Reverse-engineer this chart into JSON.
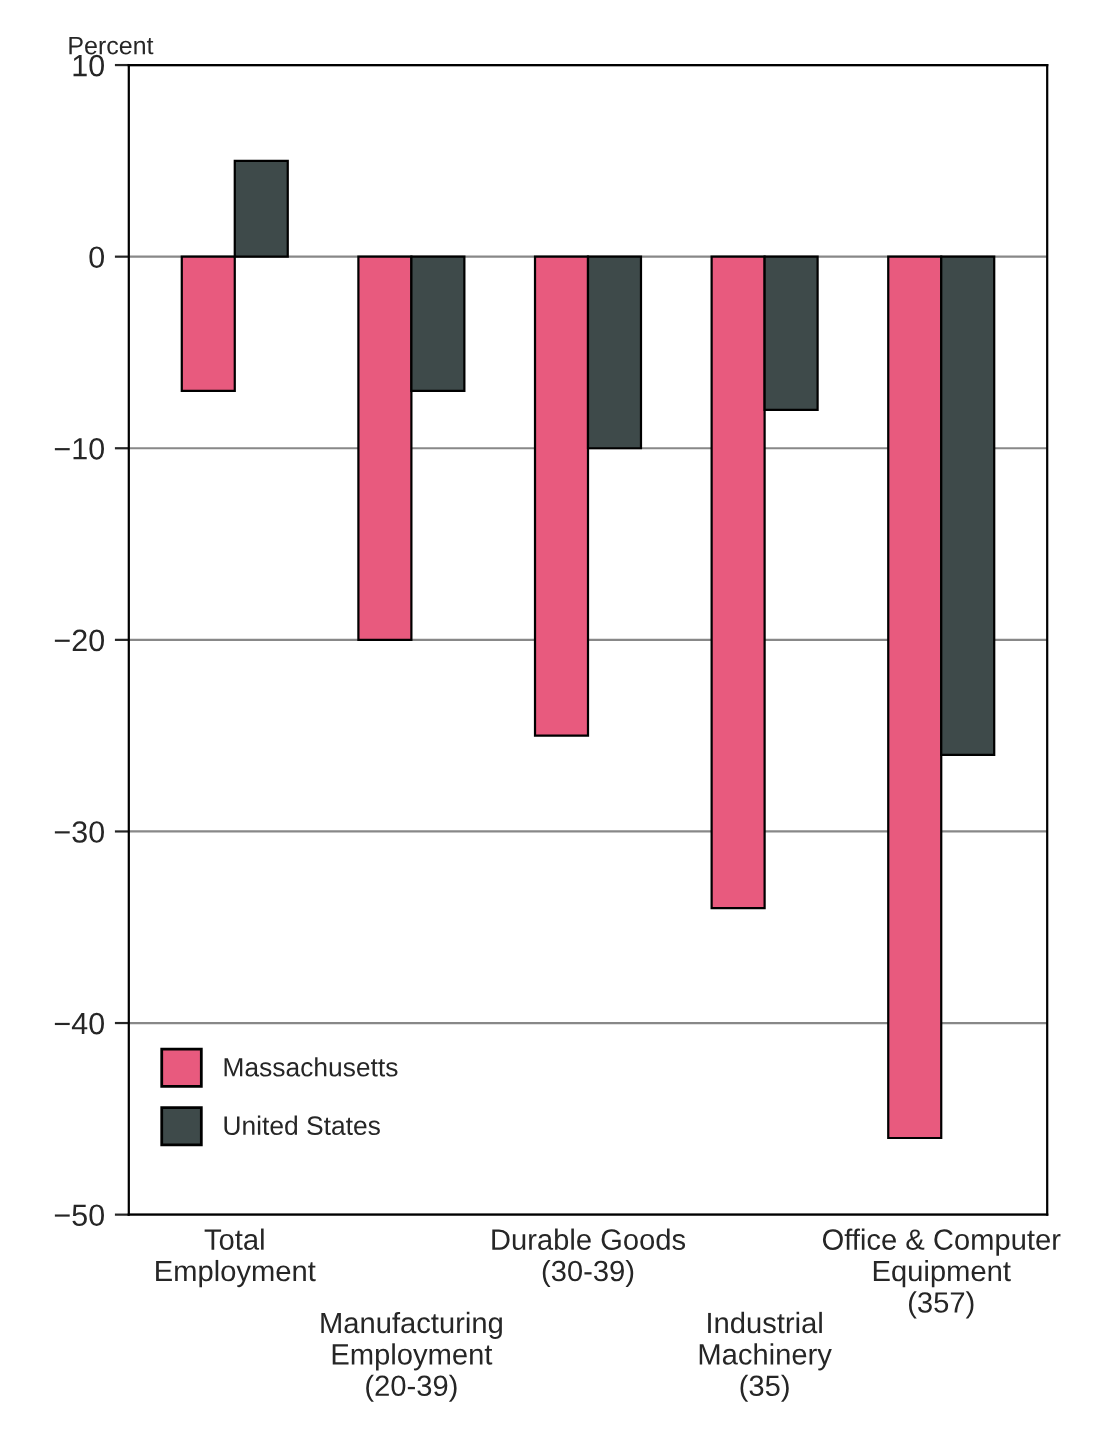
{
  "chart_data": {
    "type": "bar",
    "ylabel": "Percent",
    "categories": [
      "Total\nEmployment",
      "Manufacturing\nEmployment\n(20-39)",
      "Durable Goods\n(30-39)",
      "Industrial\nMachinery\n(35)",
      "Office & Computer\nEquipment\n(357)"
    ],
    "series": [
      {
        "name": "Massachusetts",
        "color": "#e85a7e",
        "values": [
          -7,
          -20,
          -25,
          -34,
          -46
        ]
      },
      {
        "name": "United States",
        "color": "#3e4a4a",
        "values": [
          5,
          -7,
          -10,
          -8,
          -26
        ]
      }
    ],
    "ylim": [
      -50,
      10
    ],
    "yticks": [
      -50,
      -40,
      -30,
      -20,
      -10,
      0,
      10
    ],
    "grid": "y",
    "legend": "bottom left"
  }
}
